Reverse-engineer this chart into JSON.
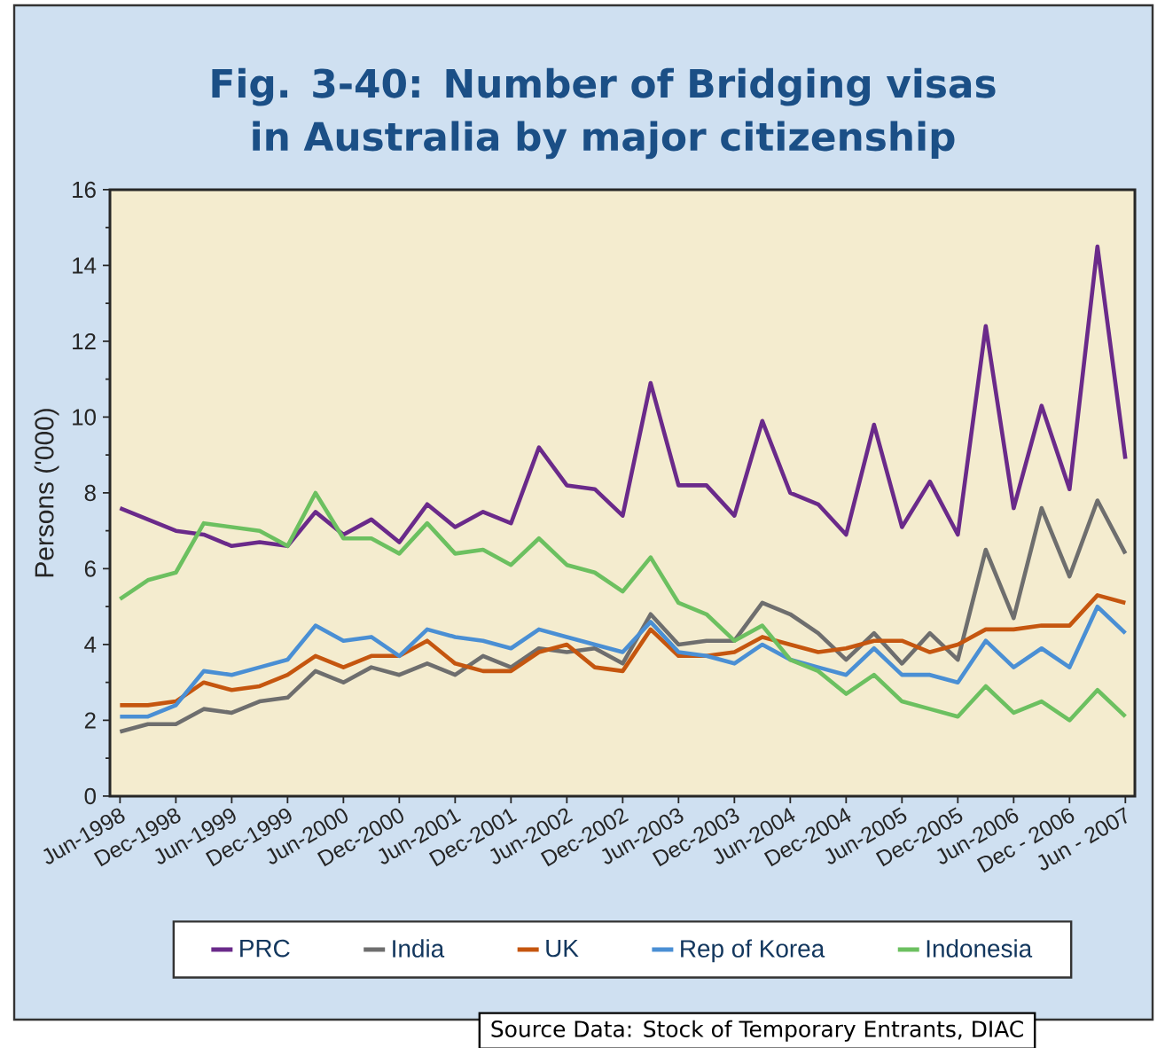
{
  "chart_data": {
    "type": "line",
    "title": "Fig. 3-40: Number of Bridging visas in Australia by major citizenship",
    "ylabel": "Persons ('000)",
    "categories": [
      "Jun-1998",
      null,
      "Dec-1998",
      null,
      "Jun-1999",
      null,
      "Dec-1999",
      null,
      "Jun-2000",
      null,
      "Dec-2000",
      null,
      "Jun-2001",
      null,
      "Dec-2001",
      null,
      "Jun-2002",
      null,
      "Dec-2002",
      null,
      "Jun-2003",
      null,
      "Dec-2003",
      null,
      "Jun-2004",
      null,
      "Dec-2004",
      null,
      "Jun-2005",
      null,
      "Dec-2005",
      null,
      "Jun-2006",
      null,
      "Dec - 2006",
      null,
      "Jun - 2007"
    ],
    "series": [
      {
        "name": "PRC",
        "color": "#6a2a8a",
        "values": [
          7.6,
          7.3,
          7.0,
          6.9,
          6.6,
          6.7,
          6.6,
          7.5,
          6.9,
          7.3,
          6.7,
          7.7,
          7.1,
          7.5,
          7.2,
          9.2,
          8.2,
          8.1,
          7.4,
          10.9,
          8.2,
          8.2,
          7.4,
          9.9,
          8.0,
          7.7,
          6.9,
          9.8,
          7.1,
          8.3,
          6.9,
          12.4,
          7.6,
          10.3,
          8.1,
          14.5,
          8.9
        ]
      },
      {
        "name": "India",
        "color": "#6e6e6e",
        "values": [
          1.7,
          1.9,
          1.9,
          2.3,
          2.2,
          2.5,
          2.6,
          3.3,
          3.0,
          3.4,
          3.2,
          3.5,
          3.2,
          3.7,
          3.4,
          3.9,
          3.8,
          3.9,
          3.5,
          4.8,
          4.0,
          4.1,
          4.1,
          5.1,
          4.8,
          4.3,
          3.6,
          4.3,
          3.5,
          4.3,
          3.6,
          6.5,
          4.7,
          7.6,
          5.8,
          7.8,
          6.4
        ]
      },
      {
        "name": "UK",
        "color": "#c5560f",
        "values": [
          2.4,
          2.4,
          2.5,
          3.0,
          2.8,
          2.9,
          3.2,
          3.7,
          3.4,
          3.7,
          3.7,
          4.1,
          3.5,
          3.3,
          3.3,
          3.8,
          4.0,
          3.4,
          3.3,
          4.4,
          3.7,
          3.7,
          3.8,
          4.2,
          4.0,
          3.8,
          3.9,
          4.1,
          4.1,
          3.8,
          4.0,
          4.4,
          4.4,
          4.5,
          4.5,
          5.3,
          5.1
        ]
      },
      {
        "name": "Rep of Korea",
        "color": "#4a8fd4",
        "values": [
          2.1,
          2.1,
          2.4,
          3.3,
          3.2,
          3.4,
          3.6,
          4.5,
          4.1,
          4.2,
          3.7,
          4.4,
          4.2,
          4.1,
          3.9,
          4.4,
          4.2,
          4.0,
          3.8,
          4.6,
          3.8,
          3.7,
          3.5,
          4.0,
          3.6,
          3.4,
          3.2,
          3.9,
          3.2,
          3.2,
          3.0,
          4.1,
          3.4,
          3.9,
          3.4,
          5.0,
          4.3
        ]
      },
      {
        "name": "Indonesia",
        "color": "#6cc060",
        "values": [
          5.2,
          5.7,
          5.9,
          7.2,
          7.1,
          7.0,
          6.6,
          8.0,
          6.8,
          6.8,
          6.4,
          7.2,
          6.4,
          6.5,
          6.1,
          6.8,
          6.1,
          5.9,
          5.4,
          6.3,
          5.1,
          4.8,
          4.1,
          4.5,
          3.6,
          3.3,
          2.7,
          3.2,
          2.5,
          2.3,
          2.1,
          2.9,
          2.2,
          2.5,
          2.0,
          2.8,
          2.1
        ]
      }
    ],
    "ylim": [
      0,
      16
    ],
    "yticks": [
      0,
      2,
      4,
      6,
      8,
      10,
      12,
      14,
      16
    ],
    "grid": false,
    "legend": "bottom",
    "marker": "none",
    "line_style": "solid",
    "annotations": [
      "Source Data: Stock of Temporary Entrants, DIAC"
    ]
  }
}
